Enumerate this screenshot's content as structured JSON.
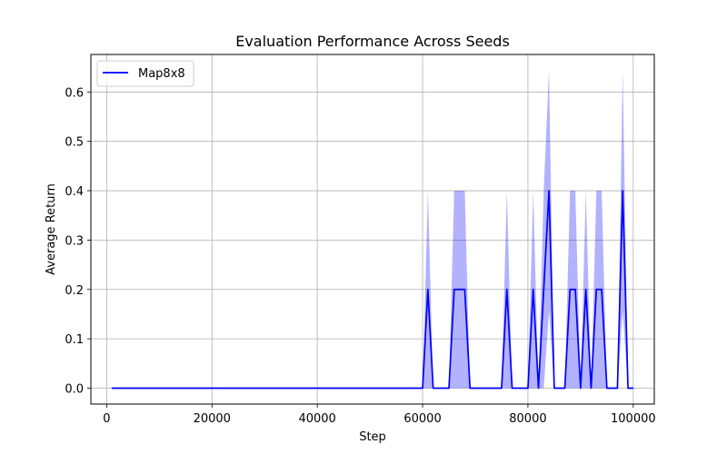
{
  "chart_data": {
    "type": "line",
    "title": "Evaluation Performance Across Seeds",
    "xlabel": "Step",
    "ylabel": "Average Return",
    "xlim": [
      -3000,
      104000
    ],
    "ylim": [
      -0.0322,
      0.676
    ],
    "xticks": [
      0,
      20000,
      40000,
      60000,
      80000,
      100000
    ],
    "yticks": [
      0.0,
      0.1,
      0.2,
      0.3,
      0.4,
      0.5,
      0.6
    ],
    "xtick_labels": [
      "0",
      "20000",
      "40000",
      "60000",
      "80000",
      "100000"
    ],
    "ytick_labels": [
      "0.0",
      "0.1",
      "0.2",
      "0.3",
      "0.4",
      "0.5",
      "0.6"
    ],
    "grid": true,
    "legend": {
      "placement": "top-left",
      "entries": [
        "Map8x8"
      ]
    },
    "series": [
      {
        "name": "Map8x8",
        "color": "#0000ff",
        "band_color": "#0000ff",
        "band_alpha": 0.3,
        "x": [
          1000,
          60000,
          61000,
          62000,
          65000,
          66000,
          68000,
          69000,
          75000,
          76000,
          77000,
          80000,
          81000,
          82000,
          83000,
          84000,
          85000,
          87000,
          88000,
          89000,
          90000,
          91000,
          92000,
          93000,
          94000,
          95000,
          97000,
          98000,
          99000,
          100000
        ],
        "values": [
          0,
          0,
          0.2,
          0,
          0,
          0.2,
          0.2,
          0,
          0,
          0.2,
          0,
          0,
          0.2,
          0,
          0.2,
          0.4,
          0,
          0,
          0.2,
          0.2,
          0,
          0.2,
          0,
          0.2,
          0.2,
          0,
          0,
          0.4,
          0,
          0
        ],
        "upper": [
          0,
          0,
          0.4,
          0,
          0,
          0.4,
          0.4,
          0,
          0,
          0.4,
          0,
          0,
          0.4,
          0,
          0.4,
          0.645,
          0,
          0,
          0.4,
          0.4,
          0,
          0.4,
          0,
          0.4,
          0.4,
          0,
          0,
          0.645,
          0,
          0
        ],
        "lower": [
          0,
          0,
          0,
          0,
          0,
          0,
          0,
          0,
          0,
          0,
          0,
          0,
          0,
          0,
          0,
          0.155,
          0,
          0,
          0,
          0,
          0,
          0,
          0,
          0,
          0,
          0,
          0,
          0.155,
          0,
          0
        ]
      }
    ]
  }
}
